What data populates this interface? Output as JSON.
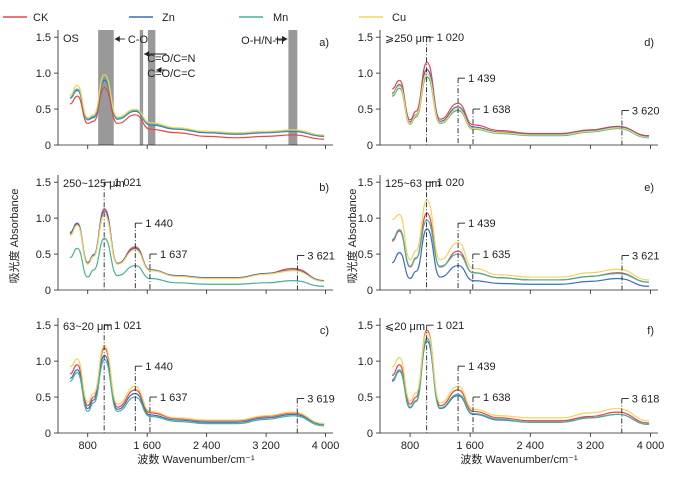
{
  "legend": [
    {
      "name": "CK",
      "color": "#e8454a"
    },
    {
      "name": "Zn",
      "color": "#3c6bbf"
    },
    {
      "name": "Mn",
      "color": "#47b19a"
    },
    {
      "name": "Cu",
      "color": "#f2d45c"
    }
  ],
  "shared": {
    "xlabel": "波数 Wavenumber/cm⁻¹",
    "ylabel": "吸光度 Absorbance",
    "xlim": [
      400,
      4100
    ],
    "ylim": [
      0,
      1.6
    ],
    "xticks": [
      800,
      1600,
      2400,
      3200,
      4000
    ],
    "xtick_labels": [
      "800",
      "1 600",
      "2 400",
      "3 200",
      "4 000"
    ],
    "yticks": [
      0,
      0.5,
      1.0,
      1.5
    ],
    "ytick_labels": [
      "0",
      "0.5",
      "1.0",
      "1.5"
    ]
  },
  "chart_data": [
    {
      "type": "line",
      "panel": "a)",
      "title": "OS",
      "series": [
        {
          "name": "CK",
          "values": [
            0.57,
            0.68,
            0.3,
            0.33,
            0.8,
            0.3,
            0.42,
            0.22,
            0.17,
            0.12,
            0.1,
            0.12,
            0.14,
            0.08
          ]
        },
        {
          "name": "Zn",
          "values": [
            0.65,
            0.76,
            0.35,
            0.38,
            0.9,
            0.36,
            0.47,
            0.28,
            0.22,
            0.17,
            0.15,
            0.17,
            0.19,
            0.12
          ]
        },
        {
          "name": "Mn",
          "values": [
            0.66,
            0.78,
            0.36,
            0.4,
            0.93,
            0.37,
            0.48,
            0.29,
            0.23,
            0.18,
            0.16,
            0.18,
            0.2,
            0.13
          ]
        },
        {
          "name": "Cu",
          "values": [
            0.69,
            0.83,
            0.38,
            0.42,
            0.98,
            0.39,
            0.5,
            0.31,
            0.24,
            0.19,
            0.17,
            0.19,
            0.21,
            0.14
          ]
        }
      ],
      "bands": [
        {
          "label": "C-O",
          "x1": 940,
          "x2": 1150
        },
        {
          "label": "C=O/C=N",
          "x1": 1500,
          "x2": 1545
        },
        {
          "label": "C=O/C=C",
          "x1": 1610,
          "x2": 1710
        },
        {
          "label": "O-H/N-H",
          "x1": 3500,
          "x2": 3620
        }
      ],
      "peaks": []
    },
    {
      "type": "line",
      "panel": "d)",
      "title": "⩾250 μm",
      "series": [
        {
          "name": "CK",
          "values": [
            0.78,
            0.9,
            0.35,
            0.47,
            1.15,
            0.36,
            0.58,
            0.28,
            0.2,
            0.16,
            0.16,
            0.21,
            0.26,
            0.13
          ]
        },
        {
          "name": "Zn",
          "values": [
            0.72,
            0.84,
            0.32,
            0.42,
            1.05,
            0.33,
            0.53,
            0.25,
            0.18,
            0.15,
            0.15,
            0.2,
            0.25,
            0.12
          ]
        },
        {
          "name": "Mn",
          "values": [
            0.68,
            0.79,
            0.29,
            0.39,
            0.95,
            0.3,
            0.48,
            0.22,
            0.16,
            0.13,
            0.13,
            0.18,
            0.23,
            0.1
          ]
        },
        {
          "name": "Cu",
          "values": [
            0.7,
            0.82,
            0.3,
            0.41,
            1.0,
            0.31,
            0.5,
            0.23,
            0.17,
            0.14,
            0.14,
            0.19,
            0.24,
            0.11
          ]
        }
      ],
      "bands": [],
      "peaks": [
        {
          "x": 1020,
          "label": "1 020",
          "level": 1.5
        },
        {
          "x": 1439,
          "label": "1 439",
          "level": 0.93
        },
        {
          "x": 1638,
          "label": "1 638",
          "level": 0.5
        },
        {
          "x": 3620,
          "label": "3 620",
          "level": 0.48
        }
      ]
    },
    {
      "type": "line",
      "panel": "b)",
      "title": "250~125 μm",
      "series": [
        {
          "name": "CK",
          "values": [
            0.78,
            0.92,
            0.38,
            0.48,
            1.13,
            0.37,
            0.6,
            0.28,
            0.2,
            0.17,
            0.17,
            0.23,
            0.3,
            0.13
          ]
        },
        {
          "name": "Zn",
          "values": [
            0.8,
            0.93,
            0.38,
            0.49,
            1.1,
            0.37,
            0.58,
            0.28,
            0.2,
            0.17,
            0.17,
            0.23,
            0.28,
            0.13
          ]
        },
        {
          "name": "Mn",
          "values": [
            0.45,
            0.58,
            0.18,
            0.28,
            0.72,
            0.2,
            0.34,
            0.16,
            0.1,
            0.08,
            0.08,
            0.1,
            0.13,
            0.05
          ]
        },
        {
          "name": "Cu",
          "values": [
            0.76,
            0.9,
            0.36,
            0.47,
            1.05,
            0.36,
            0.56,
            0.27,
            0.19,
            0.16,
            0.16,
            0.22,
            0.27,
            0.12
          ]
        }
      ],
      "bands": [],
      "peaks": [
        {
          "x": 1021,
          "label": "1 021",
          "level": 1.5
        },
        {
          "x": 1440,
          "label": "1 440",
          "level": 0.93
        },
        {
          "x": 1637,
          "label": "1 637",
          "level": 0.5
        },
        {
          "x": 3621,
          "label": "3 621",
          "level": 0.48
        }
      ]
    },
    {
      "type": "line",
      "panel": "e)",
      "title": "125~63 μm",
      "series": [
        {
          "name": "CK",
          "values": [
            0.68,
            0.82,
            0.32,
            0.44,
            1.07,
            0.32,
            0.54,
            0.24,
            0.17,
            0.14,
            0.14,
            0.19,
            0.24,
            0.11
          ]
        },
        {
          "name": "Zn",
          "values": [
            0.38,
            0.52,
            0.16,
            0.26,
            0.85,
            0.18,
            0.34,
            0.13,
            0.09,
            0.08,
            0.08,
            0.12,
            0.16,
            0.05
          ]
        },
        {
          "name": "Mn",
          "values": [
            0.7,
            0.84,
            0.33,
            0.45,
            0.97,
            0.33,
            0.5,
            0.24,
            0.17,
            0.14,
            0.14,
            0.19,
            0.23,
            0.11
          ]
        },
        {
          "name": "Cu",
          "values": [
            0.98,
            1.05,
            0.42,
            0.55,
            1.25,
            0.42,
            0.66,
            0.3,
            0.21,
            0.18,
            0.18,
            0.24,
            0.29,
            0.14
          ]
        }
      ],
      "bands": [],
      "peaks": [
        {
          "x": 1020,
          "label": "1 020",
          "level": 1.5
        },
        {
          "x": 1439,
          "label": "1 439",
          "level": 0.93
        },
        {
          "x": 1635,
          "label": "1 635",
          "level": 0.5
        },
        {
          "x": 3621,
          "label": "3 621",
          "level": 0.48
        }
      ]
    },
    {
      "type": "line",
      "panel": "c)",
      "title": "63~20 μm",
      "series": [
        {
          "name": "CK",
          "values": [
            0.82,
            0.95,
            0.38,
            0.5,
            1.18,
            0.36,
            0.6,
            0.28,
            0.2,
            0.17,
            0.17,
            0.23,
            0.28,
            0.13
          ]
        },
        {
          "name": "Zn",
          "values": [
            0.76,
            0.88,
            0.34,
            0.46,
            1.08,
            0.33,
            0.55,
            0.25,
            0.18,
            0.15,
            0.15,
            0.21,
            0.26,
            0.12
          ]
        },
        {
          "name": "Mn",
          "values": [
            0.72,
            0.84,
            0.3,
            0.42,
            1.02,
            0.3,
            0.5,
            0.23,
            0.16,
            0.13,
            0.13,
            0.19,
            0.24,
            0.1
          ]
        },
        {
          "name": "Cu",
          "values": [
            0.92,
            1.03,
            0.43,
            0.55,
            1.22,
            0.4,
            0.65,
            0.3,
            0.21,
            0.18,
            0.18,
            0.24,
            0.29,
            0.13
          ]
        }
      ],
      "bands": [],
      "peaks": [
        {
          "x": 1021,
          "label": "1 021",
          "level": 1.5
        },
        {
          "x": 1440,
          "label": "1 440",
          "level": 0.93
        },
        {
          "x": 1637,
          "label": "1 637",
          "level": 0.5
        },
        {
          "x": 3619,
          "label": "3 619",
          "level": 0.48
        }
      ]
    },
    {
      "type": "line",
      "panel": "f)",
      "title": "⩽20 μm",
      "series": [
        {
          "name": "CK",
          "values": [
            0.8,
            0.95,
            0.4,
            0.5,
            1.43,
            0.38,
            0.6,
            0.3,
            0.21,
            0.17,
            0.17,
            0.23,
            0.29,
            0.14
          ]
        },
        {
          "name": "Zn",
          "values": [
            0.72,
            0.86,
            0.35,
            0.44,
            1.28,
            0.34,
            0.52,
            0.26,
            0.18,
            0.15,
            0.15,
            0.21,
            0.26,
            0.12
          ]
        },
        {
          "name": "Mn",
          "values": [
            0.74,
            0.88,
            0.36,
            0.45,
            1.32,
            0.35,
            0.54,
            0.27,
            0.19,
            0.15,
            0.15,
            0.21,
            0.26,
            0.12
          ]
        },
        {
          "name": "Cu",
          "values": [
            0.92,
            1.05,
            0.45,
            0.56,
            1.4,
            0.42,
            0.65,
            0.33,
            0.24,
            0.21,
            0.21,
            0.28,
            0.34,
            0.17
          ]
        }
      ],
      "bands": [],
      "peaks": [
        {
          "x": 1021,
          "label": "1 021",
          "level": 1.5
        },
        {
          "x": 1439,
          "label": "1 439",
          "level": 0.93
        },
        {
          "x": 1638,
          "label": "1 638",
          "level": 0.5
        },
        {
          "x": 3618,
          "label": "3 618",
          "level": 0.48
        }
      ]
    }
  ],
  "wavenumbers": [
    560,
    660,
    800,
    880,
    1025,
    1200,
    1440,
    1640,
    2000,
    2400,
    2800,
    3200,
    3560,
    3980
  ]
}
